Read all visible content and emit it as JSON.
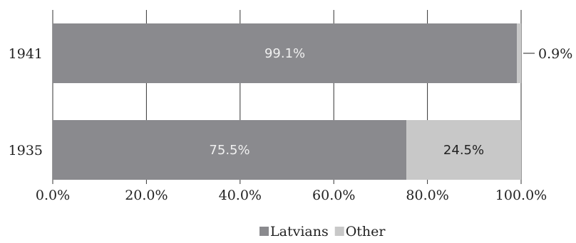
{
  "chart_data": {
    "type": "bar",
    "orientation": "horizontal",
    "stacked": true,
    "percent": true,
    "categories": [
      "1941",
      "1935"
    ],
    "series": [
      {
        "name": "Latvians",
        "values": [
          99.1,
          75.5
        ],
        "labels": [
          "99.1%",
          "75.5%"
        ],
        "color": "#8a8a8e",
        "label_color": "#f0f0f0"
      },
      {
        "name": "Other",
        "values": [
          0.9,
          24.5
        ],
        "labels": [
          "0.9%",
          "24.5%"
        ],
        "color": "#c8c8c8",
        "label_color": "#222222"
      }
    ],
    "xlim": [
      0,
      100
    ],
    "xticks": [
      0,
      20,
      40,
      60,
      80,
      100
    ],
    "xtick_labels": [
      "0.0%",
      "20.0%",
      "40.0%",
      "60.0%",
      "80.0%",
      "100.0%"
    ],
    "grid": "vertical",
    "legend": "bottom-center",
    "callouts": [
      {
        "category": "1941",
        "series": "Other",
        "label": "0.9%"
      }
    ]
  }
}
